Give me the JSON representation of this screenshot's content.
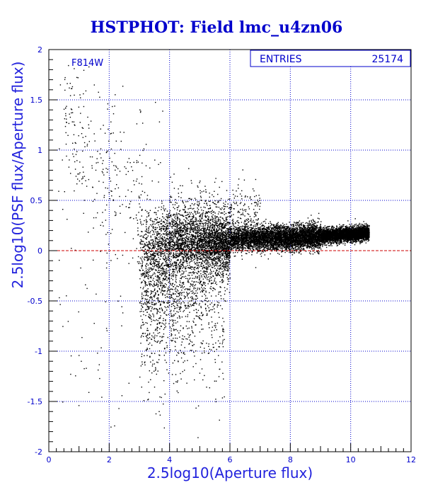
{
  "chart_data": {
    "type": "scatter",
    "title": "HSTPHOT: Field lmc_u4zn06",
    "xlabel": "2.5log10(Aperture flux)",
    "ylabel": "2.5log10(PSF flux/Aperture flux)",
    "xlim": [
      0,
      12
    ],
    "ylim": [
      -2,
      2
    ],
    "xticks": [
      0,
      2,
      4,
      6,
      8,
      10,
      12
    ],
    "yticks": [
      -2,
      -1.5,
      -1,
      -0.5,
      0,
      0.5,
      1,
      1.5,
      2
    ],
    "grid": true,
    "filter_label": "F814W",
    "stats": {
      "label": "ENTRIES",
      "value": "25174"
    },
    "reference_line": {
      "y": 0,
      "color": "#cc0000",
      "style": "dashed"
    },
    "colors": {
      "axis": "#0000cc",
      "grid": "#0000cc",
      "points": "#000000",
      "reference": "#cc0000"
    },
    "points_summary": {
      "count": 25174,
      "main_locus": [
        {
          "x": 3.0,
          "y": 0.18
        },
        {
          "x": 4.0,
          "y": 0.16
        },
        {
          "x": 6.0,
          "y": 0.12
        },
        {
          "x": 8.0,
          "y": 0.13
        },
        {
          "x": 10.0,
          "y": 0.17
        },
        {
          "x": 10.5,
          "y": 0.18
        }
      ]
    }
  }
}
